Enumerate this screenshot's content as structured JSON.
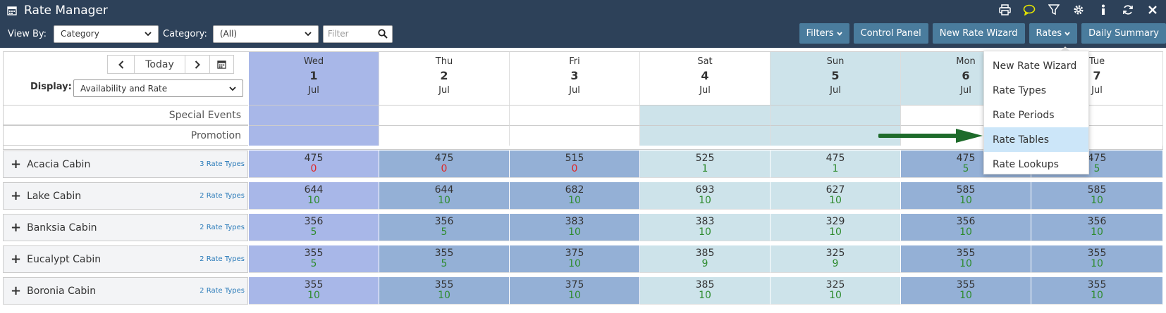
{
  "app": {
    "title": "Rate Manager"
  },
  "toolbar": {
    "view_by_label": "View By:",
    "view_by_value": "Category",
    "category_label": "Category:",
    "category_value": "(All)",
    "filter_placeholder": "Filter",
    "buttons": {
      "filters": "Filters",
      "control_panel": "Control Panel",
      "new_rate_wizard": "New Rate Wizard",
      "rates": "Rates",
      "daily_summary": "Daily Summary"
    }
  },
  "nav": {
    "today": "Today"
  },
  "display": {
    "label": "Display:",
    "value": "Availability and Rate"
  },
  "days": [
    {
      "dow": "Wed",
      "day": "1",
      "month": "Jul",
      "color": "#a8b7e8"
    },
    {
      "dow": "Thu",
      "day": "2",
      "month": "Jul",
      "color": "#ffffff"
    },
    {
      "dow": "Fri",
      "day": "3",
      "month": "Jul",
      "color": "#ffffff"
    },
    {
      "dow": "Sat",
      "day": "4",
      "month": "Jul",
      "color": "#ffffff"
    },
    {
      "dow": "Sun",
      "day": "5",
      "month": "Jul",
      "color": "#cde3ea"
    },
    {
      "dow": "Mon",
      "day": "6",
      "month": "Jul",
      "color": "#cde3ea"
    },
    {
      "dow": "Tue",
      "day": "7",
      "month": "Jul",
      "color": "#ffffff"
    }
  ],
  "info_rows": [
    {
      "label": "Special Events"
    },
    {
      "label": "Promotion"
    }
  ],
  "rows": [
    {
      "name": "Acacia Cabin",
      "rate_types": "3 Rate Types",
      "cells": [
        {
          "rate": "475",
          "avail": "0"
        },
        {
          "rate": "475",
          "avail": "0"
        },
        {
          "rate": "515",
          "avail": "0"
        },
        {
          "rate": "525",
          "avail": "1"
        },
        {
          "rate": "475",
          "avail": "1"
        },
        {
          "rate": "475",
          "avail": "5"
        },
        {
          "rate": "475",
          "avail": "5"
        }
      ]
    },
    {
      "name": "Lake Cabin",
      "rate_types": "2 Rate Types",
      "cells": [
        {
          "rate": "644",
          "avail": "10"
        },
        {
          "rate": "644",
          "avail": "10"
        },
        {
          "rate": "682",
          "avail": "10"
        },
        {
          "rate": "693",
          "avail": "10"
        },
        {
          "rate": "627",
          "avail": "10"
        },
        {
          "rate": "585",
          "avail": "10"
        },
        {
          "rate": "585",
          "avail": "10"
        }
      ]
    },
    {
      "name": "Banksia Cabin",
      "rate_types": "2 Rate Types",
      "cells": [
        {
          "rate": "356",
          "avail": "5"
        },
        {
          "rate": "356",
          "avail": "5"
        },
        {
          "rate": "383",
          "avail": "10"
        },
        {
          "rate": "383",
          "avail": "10"
        },
        {
          "rate": "329",
          "avail": "10"
        },
        {
          "rate": "356",
          "avail": "10"
        },
        {
          "rate": "356",
          "avail": "10"
        }
      ]
    },
    {
      "name": "Eucalypt Cabin",
      "rate_types": "2 Rate Types",
      "cells": [
        {
          "rate": "355",
          "avail": "5"
        },
        {
          "rate": "355",
          "avail": "5"
        },
        {
          "rate": "375",
          "avail": "10"
        },
        {
          "rate": "385",
          "avail": "9"
        },
        {
          "rate": "325",
          "avail": "9"
        },
        {
          "rate": "355",
          "avail": "10"
        },
        {
          "rate": "355",
          "avail": "10"
        }
      ]
    },
    {
      "name": "Boronia Cabin",
      "rate_types": "2 Rate Types",
      "cells": [
        {
          "rate": "355",
          "avail": "10"
        },
        {
          "rate": "355",
          "avail": "10"
        },
        {
          "rate": "375",
          "avail": "10"
        },
        {
          "rate": "385",
          "avail": "10"
        },
        {
          "rate": "325",
          "avail": "10"
        },
        {
          "rate": "355",
          "avail": "10"
        },
        {
          "rate": "355",
          "avail": "10"
        }
      ]
    }
  ],
  "rates_menu": {
    "items": [
      {
        "label": "New Rate Wizard"
      },
      {
        "label": "Rate Types"
      },
      {
        "label": "Rate Periods"
      },
      {
        "label": "Rate Tables"
      },
      {
        "label": "Rate Lookups"
      }
    ],
    "highlighted": "Rate Tables"
  },
  "colors": {
    "header_bg": "#2d4159",
    "button_bg": "#4a7c9d",
    "avail_zero": "#e02424",
    "avail_positive": "#2e8b2e",
    "arrow": "#1e6b2b"
  }
}
